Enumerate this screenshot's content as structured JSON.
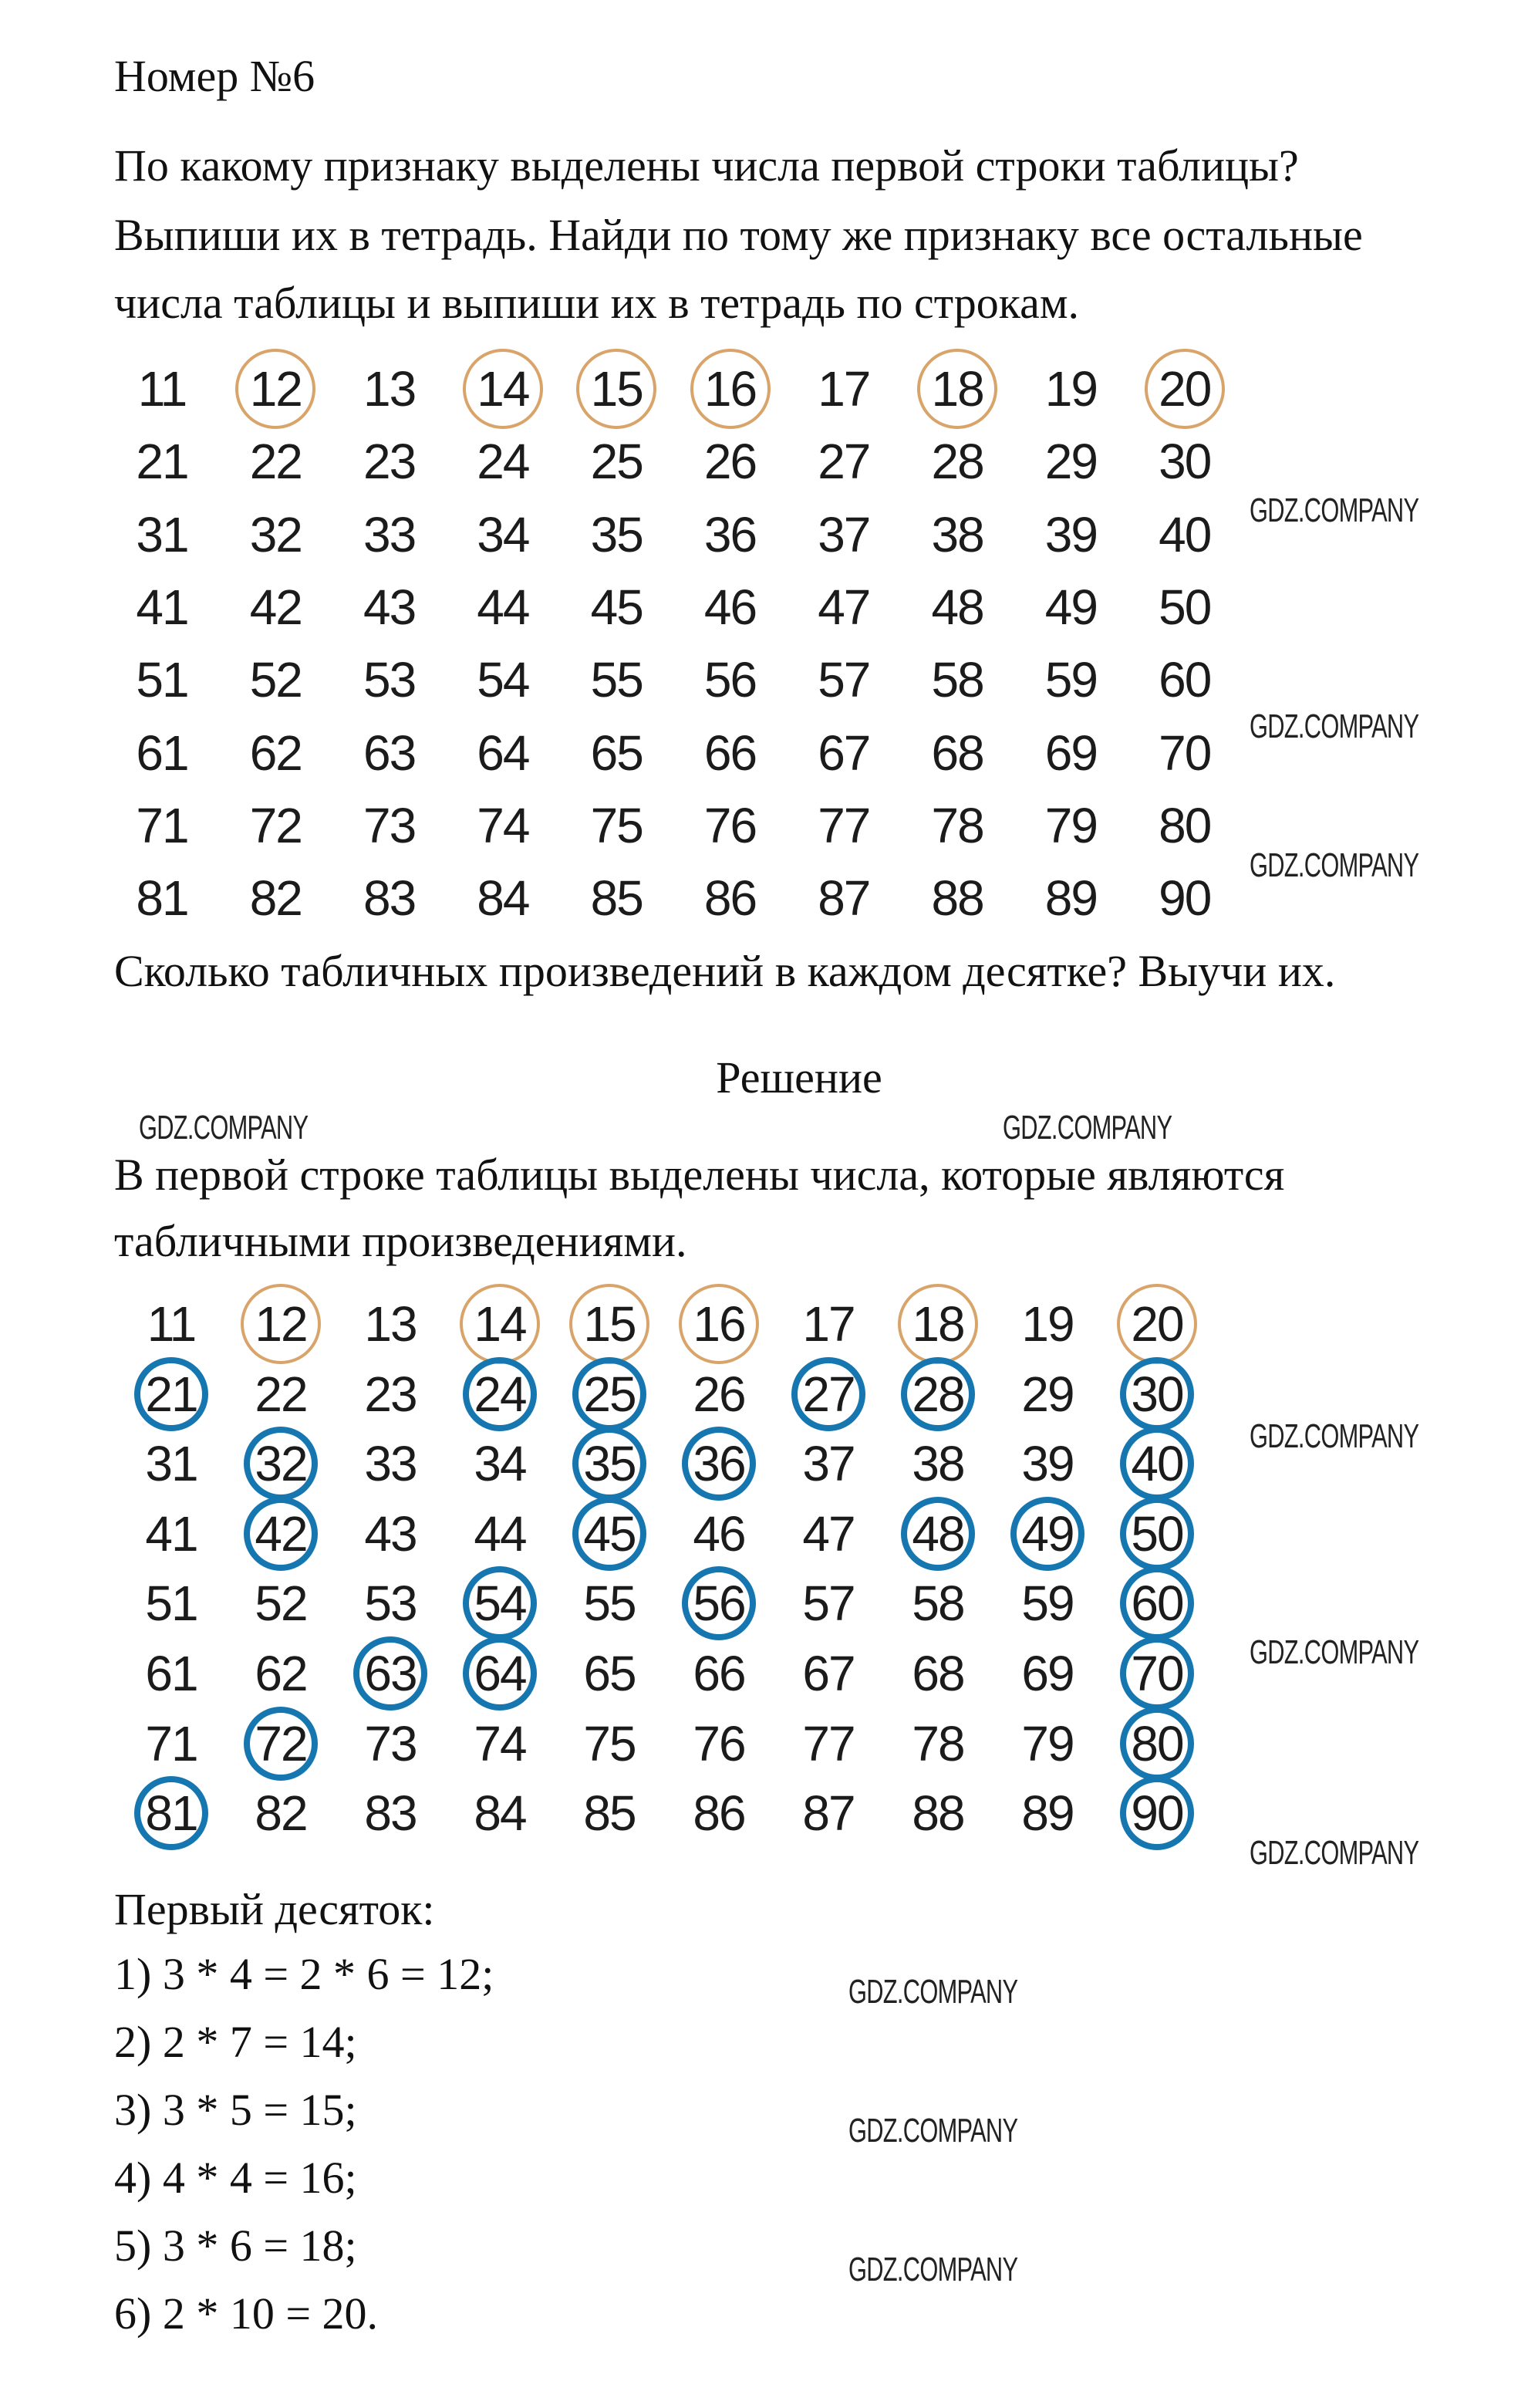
{
  "title": "Номер №6",
  "task": {
    "lines": [
      "По какому признаку выделены числа первой строки таблицы?",
      "Выпиши их в тетрадь. Найди по тому же признаку все остальные",
      "числа таблицы и выпиши их в тетрадь по строкам."
    ],
    "question": "Сколько табличных произведений в каждом десятке? Выучи их."
  },
  "task_table": {
    "rows": [
      [
        11,
        12,
        13,
        14,
        15,
        16,
        17,
        18,
        19,
        20
      ],
      [
        21,
        22,
        23,
        24,
        25,
        26,
        27,
        28,
        29,
        30
      ],
      [
        31,
        32,
        33,
        34,
        35,
        36,
        37,
        38,
        39,
        40
      ],
      [
        41,
        42,
        43,
        44,
        45,
        46,
        47,
        48,
        49,
        50
      ],
      [
        51,
        52,
        53,
        54,
        55,
        56,
        57,
        58,
        59,
        60
      ],
      [
        61,
        62,
        63,
        64,
        65,
        66,
        67,
        68,
        69,
        70
      ],
      [
        71,
        72,
        73,
        74,
        75,
        76,
        77,
        78,
        79,
        80
      ],
      [
        81,
        82,
        83,
        84,
        85,
        86,
        87,
        88,
        89,
        90
      ]
    ],
    "highlighted_orange": [
      12,
      14,
      15,
      16,
      18,
      20
    ],
    "highlight_color": "#d9a46a"
  },
  "solution": {
    "heading": "Решение",
    "lines": [
      "В первой строке таблицы выделены числа, которые являются",
      "табличными произведениями."
    ],
    "table": {
      "highlighted_orange": [
        12,
        14,
        15,
        16,
        18,
        20
      ],
      "highlighted_blue": [
        21,
        24,
        25,
        27,
        28,
        30,
        32,
        35,
        36,
        40,
        42,
        45,
        48,
        49,
        50,
        54,
        56,
        60,
        63,
        64,
        70,
        72,
        80,
        81,
        90
      ],
      "orange_color": "#d9a46a",
      "blue_color": "#1677b0"
    },
    "first_ten_label": "Первый десяток:",
    "items": [
      "1) 3 * 4 = 2 * 6 = 12;",
      "2) 2 * 7 = 14;",
      "3) 3 * 5 = 15;",
      "4) 4 * 4 = 16;",
      "5) 3 * 6 = 18;",
      "6) 2 * 10 = 20."
    ]
  },
  "watermark": "GDZ.COMPANY"
}
